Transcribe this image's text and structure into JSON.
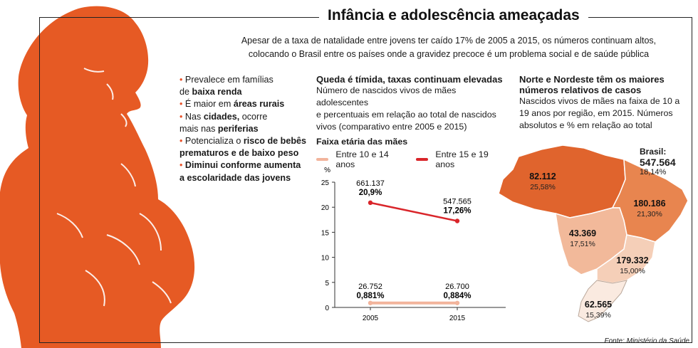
{
  "title": "Infância e adolescência ameaçadas",
  "intro_line1": "Apesar de a taxa de natalidade entre jovens ter caído 17% de 2005 a 2015, os números continuam altos,",
  "intro_line2": "colocando o Brasil entre os países onde a gravidez precoce é um problema social e de saúde pública",
  "bullets": [
    {
      "pre": "Prevalece em famílias",
      "line2_pre": "de ",
      "bold": "baixa renda",
      "post": ""
    },
    {
      "pre": "É maior em ",
      "bold": "áreas rurais"
    },
    {
      "pre": "Nas ",
      "bold": "cidades,",
      "post": " ocorre",
      "line2_pre": "mais nas ",
      "line2_bold": "periferias"
    },
    {
      "pre": "Potencializa o ",
      "bold": "risco de bebês",
      "line2_bold": "prematuros e de baixo peso"
    },
    {
      "bold": "Diminui conforme aumenta",
      "line2_bold": "a escolaridade das jovens"
    }
  ],
  "middle": {
    "heading": "Queda é tímida, taxas continuam elevadas",
    "text_lines": [
      "Número de nascidos vivos de mães adolescentes",
      "e percentuais em relação ao total de nascidos",
      "vivos (comparativo entre 2005 e 2015)"
    ],
    "legend_title": "Faixa etária das mães"
  },
  "right": {
    "heading_line1": "Norte e Nordeste têm os maiores",
    "heading_line2": "números relativos de casos",
    "text_lines": [
      "Nascidos vivos de mães na faixa de 10 a",
      "19 anos por região, em 2015. Números",
      "absolutos e % em relação ao total"
    ]
  },
  "chart_data": [
    {
      "type": "line",
      "title": "Queda é tímida, taxas continuam elevadas",
      "x": [
        "2005",
        "2015"
      ],
      "ylabel": "%",
      "ylim": [
        0,
        25
      ],
      "yticks": [
        "0",
        "5",
        "10",
        "15",
        "20",
        "25"
      ],
      "series": [
        {
          "name": "Entre 10 e 14 anos",
          "values": [
            0.881,
            0.884
          ],
          "count_labels": [
            "26.752",
            "26.700"
          ],
          "pct_labels": [
            "0,881%",
            "0,884%"
          ],
          "color": "#f2b49c"
        },
        {
          "name": "Entre 15 e 19 anos",
          "values": [
            20.9,
            17.26
          ],
          "count_labels": [
            "661.137",
            "547.565"
          ],
          "pct_labels": [
            "20,9%",
            "17,26%"
          ],
          "color": "#d9252a"
        }
      ]
    },
    {
      "type": "map",
      "title": "Norte e Nordeste têm os maiores números relativos de casos",
      "regions": [
        {
          "name": "Norte",
          "value": "82.112",
          "pct": "25,58%",
          "color": "#e0642d"
        },
        {
          "name": "Nordeste",
          "value": "180.186",
          "pct": "21,30%",
          "color": "#e8854f"
        },
        {
          "name": "Centro-Oeste",
          "value": "43.369",
          "pct": "17,51%",
          "color": "#f2b99a"
        },
        {
          "name": "Sudeste",
          "value": "179.332",
          "pct": "15,00%",
          "color": "#f5cfb8"
        },
        {
          "name": "Sul",
          "value": "62.565",
          "pct": "15,39%",
          "color": "#faeae0"
        }
      ],
      "total": {
        "label": "Brasil:",
        "value": "547.564",
        "pct": "18,14%"
      }
    }
  ],
  "source": "Fonte: Ministério da Saúde",
  "colors": {
    "accent": "#e8522a",
    "silhouette": "#e65a24"
  }
}
